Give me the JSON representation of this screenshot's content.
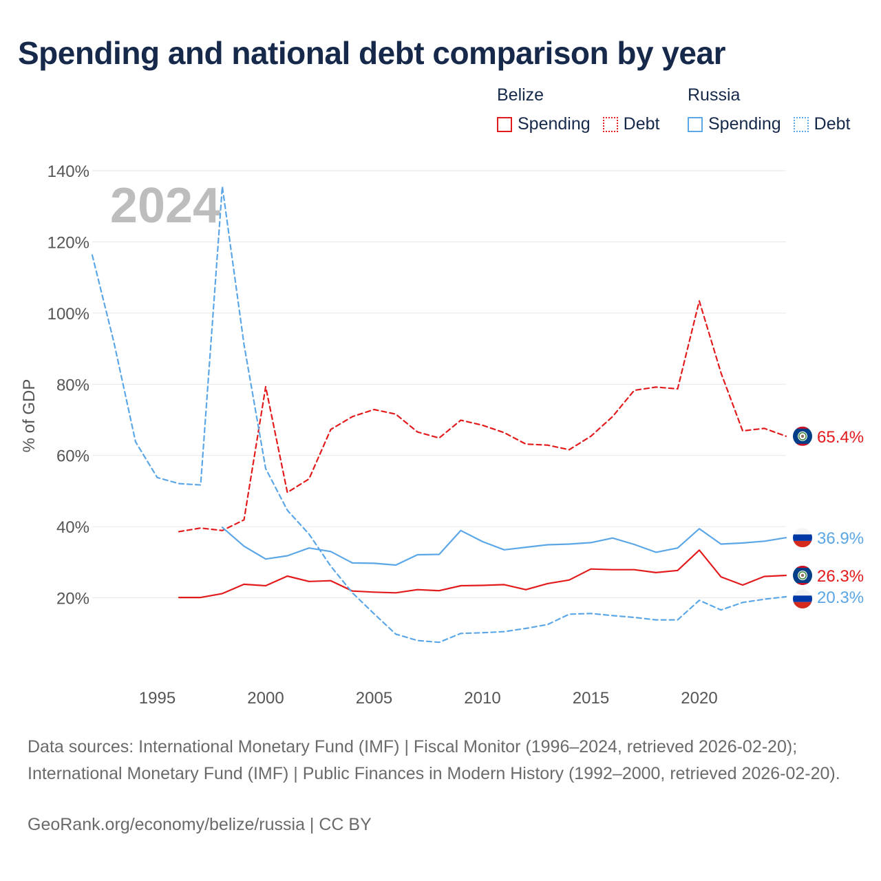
{
  "title": "Spending and national debt comparison by year",
  "legend": {
    "groups": [
      {
        "name": "Belize",
        "items": [
          {
            "label": "Spending",
            "style": "solid",
            "color": "#e31a1c"
          },
          {
            "label": "Debt",
            "style": "dotted",
            "color": "#e31a1c"
          }
        ]
      },
      {
        "name": "Russia",
        "items": [
          {
            "label": "Spending",
            "style": "solid",
            "color": "#5aa6e6"
          },
          {
            "label": "Debt",
            "style": "dotted",
            "color": "#5aa6e6"
          }
        ]
      }
    ]
  },
  "chart_data": {
    "type": "line",
    "title": "Spending and national debt comparison by year",
    "year_label": "2024",
    "ylabel": "% of GDP",
    "xlabel": "",
    "xlim": [
      1992,
      2024
    ],
    "ylim": [
      0,
      140
    ],
    "y_ticks": [
      20,
      40,
      60,
      80,
      100,
      120,
      140
    ],
    "y_tick_labels": [
      "20%",
      "40%",
      "60%",
      "80%",
      "100%",
      "120%",
      "140%"
    ],
    "x_ticks": [
      1995,
      2000,
      2005,
      2010,
      2015,
      2020
    ],
    "x_tick_labels": [
      "1995",
      "2000",
      "2005",
      "2010",
      "2015",
      "2020"
    ],
    "grid": true,
    "series": [
      {
        "name": "Belize Debt",
        "country": "Belize",
        "metric": "Debt",
        "color": "#e31a1c",
        "dashed": true,
        "start_year": 1996,
        "values": [
          38.6,
          39.6,
          38.9,
          41.9,
          79.3,
          49.6,
          53.4,
          67.3,
          70.9,
          72.9,
          71.6,
          66.6,
          64.9,
          69.9,
          68.5,
          66.4,
          63.2,
          62.9,
          61.6,
          65.4,
          70.9,
          78.3,
          79.2,
          78.7,
          103.4,
          83.2,
          66.9,
          67.6,
          65.4
        ],
        "end_label": "65.4%",
        "flag": "belize"
      },
      {
        "name": "Russia Spending",
        "country": "Russia",
        "metric": "Spending",
        "color": "#5aa6e6",
        "dashed": false,
        "start_year": 1998,
        "values": [
          39.8,
          34.5,
          30.9,
          31.8,
          34.0,
          33.0,
          29.8,
          29.7,
          29.2,
          32.1,
          32.2,
          38.9,
          35.8,
          33.5,
          34.2,
          34.9,
          35.1,
          35.5,
          36.8,
          35.0,
          32.8,
          34.0,
          39.4,
          35.1,
          35.4,
          35.9,
          36.9
        ],
        "end_label": "36.9%",
        "flag": "russia"
      },
      {
        "name": "Belize Spending",
        "country": "Belize",
        "metric": "Spending",
        "color": "#e31a1c",
        "dashed": false,
        "start_year": 1996,
        "values": [
          20.1,
          20.1,
          21.2,
          23.8,
          23.4,
          26.1,
          24.6,
          24.8,
          21.9,
          21.6,
          21.4,
          22.3,
          22.0,
          23.4,
          23.5,
          23.7,
          22.3,
          24.0,
          25.0,
          28.1,
          27.9,
          27.9,
          27.1,
          27.7,
          33.4,
          25.9,
          23.6,
          26.0,
          26.3
        ],
        "end_label": "26.3%",
        "flag": "belize"
      },
      {
        "name": "Russia Debt",
        "country": "Russia",
        "metric": "Debt",
        "color": "#5aa6e6",
        "dashed": true,
        "start_year": 1992,
        "values": [
          116.3,
          91.8,
          63.8,
          53.8,
          52.1,
          51.7,
          135.6,
          91.2,
          56.3,
          44.6,
          37.9,
          28.9,
          21.4,
          15.5,
          9.8,
          8.0,
          7.5,
          10.0,
          10.2,
          10.5,
          11.4,
          12.5,
          15.4,
          15.6,
          15.0,
          14.5,
          13.8,
          13.8,
          19.3,
          16.6,
          18.7,
          19.6,
          20.3
        ],
        "end_label": "20.3%",
        "flag": "russia"
      }
    ]
  },
  "sources": "Data sources: International Monetary Fund (IMF) | Fiscal Monitor (1996–2024, retrieved 2026-02-20); International Monetary Fund (IMF) | Public Finances in Modern History (1992–2000, retrieved 2026-02-20).",
  "credit": "GeoRank.org/economy/belize/russia | CC BY"
}
